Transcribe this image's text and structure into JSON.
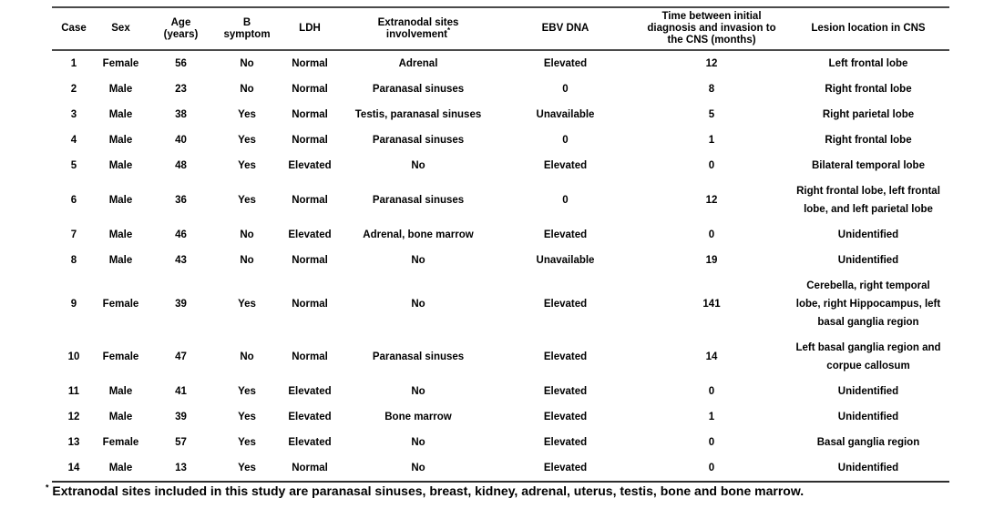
{
  "page": {
    "background_color": "#ffffff",
    "text_color": "#000000",
    "rule_color": "#4a4a4a"
  },
  "table": {
    "columns": [
      {
        "label": "Case"
      },
      {
        "label": "Sex"
      },
      {
        "label": "Age\n(years)"
      },
      {
        "label": "B\nsymptom"
      },
      {
        "label": "LDH"
      },
      {
        "label": "Extranodal sites\ninvolvement",
        "superscript": "*"
      },
      {
        "label": "EBV DNA"
      },
      {
        "label": "Time between initial\ndiagnosis and invasion to\nthe CNS (months)"
      },
      {
        "label": "Lesion location in CNS"
      }
    ],
    "rows": [
      [
        "1",
        "Female",
        "56",
        "No",
        "Normal",
        "Adrenal",
        "Elevated",
        "12",
        "Left frontal lobe"
      ],
      [
        "2",
        "Male",
        "23",
        "No",
        "Normal",
        "Paranasal sinuses",
        "0",
        "8",
        "Right frontal lobe"
      ],
      [
        "3",
        "Male",
        "38",
        "Yes",
        "Normal",
        "Testis, paranasal sinuses",
        "Unavailable",
        "5",
        "Right parietal lobe"
      ],
      [
        "4",
        "Male",
        "40",
        "Yes",
        "Normal",
        "Paranasal sinuses",
        "0",
        "1",
        "Right frontal lobe"
      ],
      [
        "5",
        "Male",
        "48",
        "Yes",
        "Elevated",
        "No",
        "Elevated",
        "0",
        "Bilateral temporal lobe"
      ],
      [
        "6",
        "Male",
        "36",
        "Yes",
        "Normal",
        "Paranasal sinuses",
        "0",
        "12",
        "Right frontal lobe, left frontal\nlobe, and left parietal lobe"
      ],
      [
        "7",
        "Male",
        "46",
        "No",
        "Elevated",
        "Adrenal, bone marrow",
        "Elevated",
        "0",
        "Unidentified"
      ],
      [
        "8",
        "Male",
        "43",
        "No",
        "Normal",
        "No",
        "Unavailable",
        "19",
        "Unidentified"
      ],
      [
        "9",
        "Female",
        "39",
        "Yes",
        "Normal",
        "No",
        "Elevated",
        "141",
        "Cerebella, right temporal\nlobe, right Hippocampus, left\nbasal ganglia region"
      ],
      [
        "10",
        "Female",
        "47",
        "No",
        "Normal",
        "Paranasal sinuses",
        "Elevated",
        "14",
        "Left basal ganglia region and\ncorpue callosum"
      ],
      [
        "11",
        "Male",
        "41",
        "Yes",
        "Elevated",
        "No",
        "Elevated",
        "0",
        "Unidentified"
      ],
      [
        "12",
        "Male",
        "39",
        "Yes",
        "Elevated",
        "Bone marrow",
        "Elevated",
        "1",
        "Unidentified"
      ],
      [
        "13",
        "Female",
        "57",
        "Yes",
        "Elevated",
        "No",
        "Elevated",
        "0",
        "Basal ganglia region"
      ],
      [
        "14",
        "Male",
        "13",
        "Yes",
        "Normal",
        "No",
        "Elevated",
        "0",
        "Unidentified"
      ]
    ]
  },
  "footnote": {
    "marker": "*",
    "text": "Extranodal sites included in this study are paranasal sinuses, breast, kidney, adrenal, uterus, testis, bone and bone marrow."
  }
}
